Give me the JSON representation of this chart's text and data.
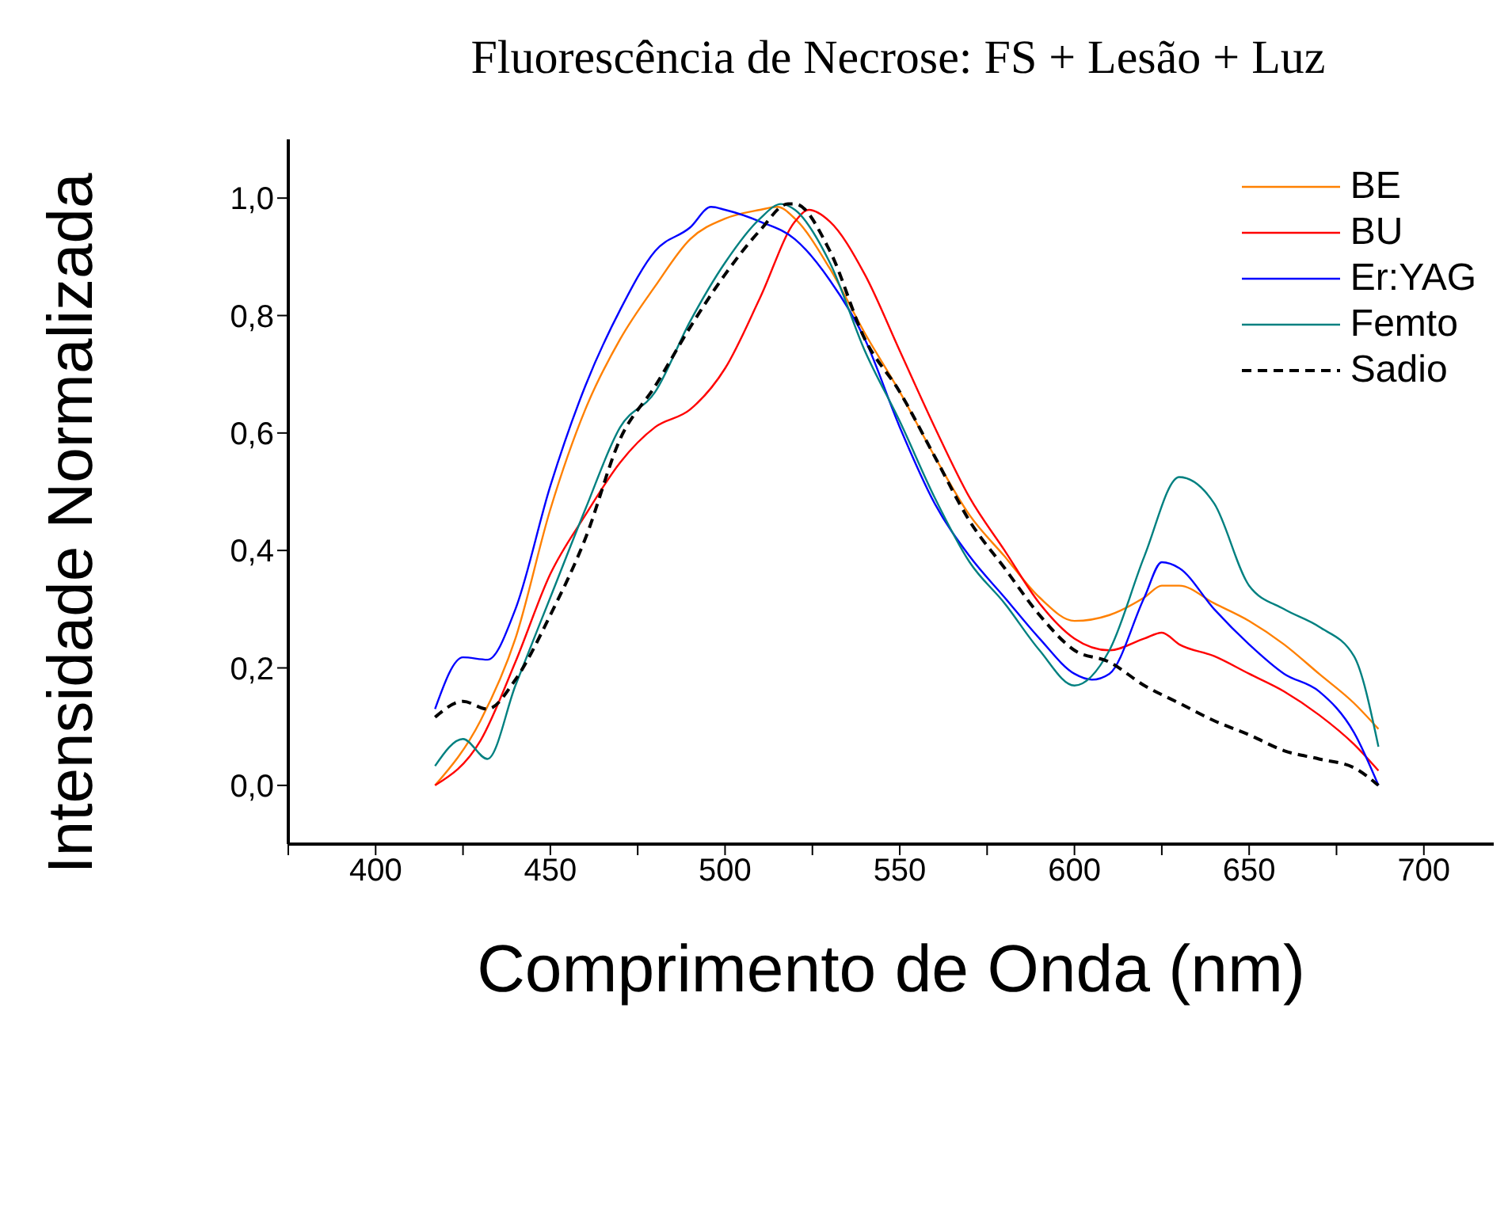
{
  "chart_data": {
    "type": "line",
    "title": "Fluorescência de Necrose: FS + Lesão + Luz",
    "xlabel": "Comprimento de Onda (nm)",
    "ylabel": "Intensidade Normalizada",
    "xlim": [
      375,
      720
    ],
    "xticks": [
      {
        "value": 375,
        "label": null
      },
      400,
      {
        "value": 425,
        "label": null
      },
      450,
      {
        "value": 475,
        "label": null
      },
      500,
      {
        "value": 525,
        "label": null
      },
      550,
      {
        "value": 575,
        "label": null
      },
      600,
      {
        "value": 625,
        "label": null
      },
      650,
      {
        "value": 675,
        "label": null
      },
      700
    ],
    "ylim": [
      -0.1,
      1.1
    ],
    "yticks": [
      {
        "value": 0,
        "label": "0,0"
      },
      {
        "value": 0.2,
        "label": "0,2"
      },
      {
        "value": 0.4,
        "label": "0,4"
      },
      {
        "value": 0.6,
        "label": "0,6"
      },
      {
        "value": 0.8,
        "label": "0,8"
      },
      {
        "value": 1.0,
        "label": "1,0"
      }
    ],
    "legend": "top right",
    "grid": false,
    "series": [
      {
        "name": "BE",
        "color": "#ff8000",
        "line_style": "solid",
        "x": [
          417,
          430,
          440,
          450,
          460,
          470,
          480,
          490,
          500,
          510,
          515,
          520,
          530,
          540,
          550,
          560,
          570,
          580,
          590,
          600,
          610,
          620,
          625,
          630,
          640,
          650,
          660,
          670,
          680,
          687
        ],
        "values": [
          0.0,
          0.11,
          0.25,
          0.47,
          0.64,
          0.76,
          0.85,
          0.93,
          0.965,
          0.98,
          0.985,
          0.965,
          0.88,
          0.77,
          0.67,
          0.56,
          0.46,
          0.39,
          0.32,
          0.28,
          0.29,
          0.32,
          0.34,
          0.34,
          0.31,
          0.28,
          0.24,
          0.19,
          0.14,
          0.096
        ]
      },
      {
        "name": "BU",
        "color": "#ff0000",
        "line_style": "solid",
        "x": [
          417,
          430,
          440,
          450,
          460,
          470,
          480,
          490,
          500,
          510,
          520,
          524,
          530,
          540,
          550,
          560,
          570,
          580,
          590,
          600,
          610,
          620,
          625,
          630,
          640,
          650,
          660,
          670,
          680,
          687
        ],
        "values": [
          0.0,
          0.076,
          0.21,
          0.36,
          0.46,
          0.55,
          0.61,
          0.64,
          0.71,
          0.83,
          0.96,
          0.98,
          0.96,
          0.87,
          0.74,
          0.61,
          0.49,
          0.4,
          0.31,
          0.25,
          0.23,
          0.25,
          0.26,
          0.24,
          0.22,
          0.19,
          0.16,
          0.12,
          0.07,
          0.025
        ]
      },
      {
        "name": "Er:YAG",
        "color": "#0000ff",
        "line_style": "solid",
        "x": [
          417,
          425,
          432,
          440,
          450,
          460,
          470,
          480,
          490,
          496,
          500,
          510,
          520,
          530,
          540,
          550,
          560,
          570,
          580,
          590,
          600,
          605,
          610,
          620,
          625,
          630,
          640,
          650,
          660,
          670,
          680,
          687
        ],
        "values": [
          0.13,
          0.218,
          0.214,
          0.3,
          0.51,
          0.68,
          0.81,
          0.91,
          0.95,
          0.985,
          0.98,
          0.96,
          0.93,
          0.86,
          0.76,
          0.61,
          0.48,
          0.39,
          0.32,
          0.25,
          0.19,
          0.18,
          0.19,
          0.32,
          0.38,
          0.37,
          0.3,
          0.24,
          0.19,
          0.16,
          0.09,
          0.0
        ]
      },
      {
        "name": "Femto",
        "color": "#008080",
        "line_style": "solid",
        "x": [
          417,
          425,
          432,
          440,
          450,
          460,
          470,
          480,
          490,
          500,
          510,
          516,
          520,
          530,
          540,
          550,
          560,
          570,
          580,
          590,
          600,
          610,
          620,
          630,
          640,
          650,
          660,
          670,
          680,
          687
        ],
        "values": [
          0.033,
          0.079,
          0.045,
          0.17,
          0.32,
          0.47,
          0.61,
          0.67,
          0.79,
          0.89,
          0.965,
          0.99,
          0.98,
          0.89,
          0.74,
          0.62,
          0.49,
          0.38,
          0.31,
          0.23,
          0.17,
          0.23,
          0.39,
          0.525,
          0.48,
          0.34,
          0.3,
          0.27,
          0.22,
          0.066
        ]
      },
      {
        "name": "Sadio",
        "color": "#000000",
        "line_style": "dashed",
        "x": [
          417,
          425,
          432,
          440,
          450,
          460,
          470,
          480,
          490,
          500,
          510,
          518,
          520,
          530,
          540,
          550,
          560,
          570,
          580,
          590,
          600,
          610,
          620,
          630,
          640,
          650,
          660,
          670,
          680,
          687
        ],
        "values": [
          0.116,
          0.143,
          0.13,
          0.18,
          0.29,
          0.42,
          0.59,
          0.68,
          0.78,
          0.87,
          0.945,
          0.99,
          0.99,
          0.91,
          0.76,
          0.67,
          0.56,
          0.45,
          0.37,
          0.29,
          0.23,
          0.21,
          0.17,
          0.14,
          0.11,
          0.086,
          0.059,
          0.045,
          0.03,
          0.0
        ]
      }
    ]
  }
}
